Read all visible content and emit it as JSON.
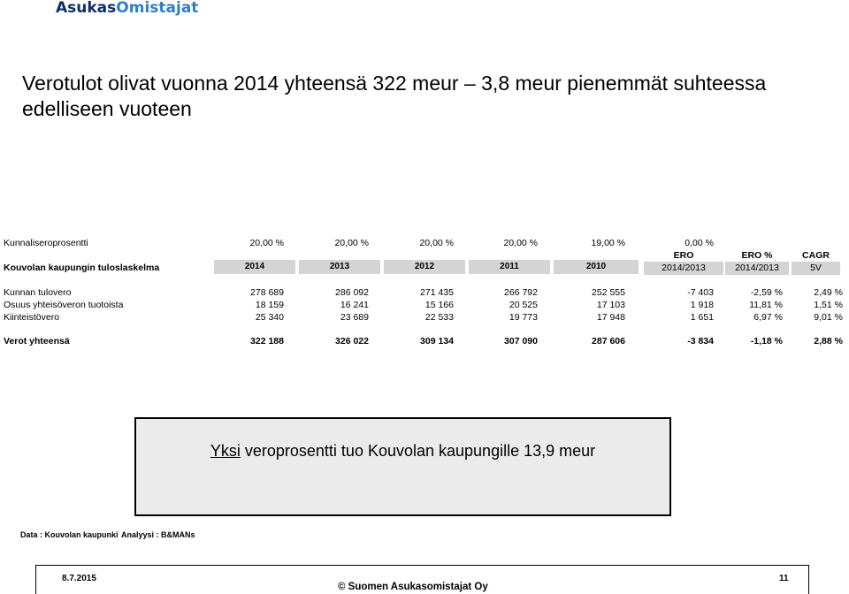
{
  "logo": {
    "part1": "Asukas",
    "part2": "Omistajat"
  },
  "title": "Verotulot olivat vuonna 2014 yhteensä  322 meur – 3,8 meur pienemmät suhteessa edelliseen vuoteen",
  "tax_rate_row": {
    "label": "Kunnaliseroprosentti",
    "values": [
      "20,00 %",
      "20,00 %",
      "20,00 %",
      "20,00 %",
      "19,00 %",
      "0,00 %"
    ]
  },
  "header": {
    "label": "Kouvolan kaupungin tuloslaskelma",
    "years": [
      "2014",
      "2013",
      "2012",
      "2011",
      "2010"
    ],
    "ero_top": "ERO",
    "ero_bottom": "2014/2013",
    "eropct_top": "ERO %",
    "eropct_bottom": "2014/2013",
    "cagr_top": "CAGR",
    "cagr_bottom": "5V"
  },
  "rows": [
    {
      "label": "Kunnan tulovero",
      "values": [
        "278 689",
        "286 092",
        "271 435",
        "266 792",
        "252 555",
        "-7 403",
        "-2,59 %",
        "2,49 %"
      ]
    },
    {
      "label": "Osuus yhteisöveron tuotoista",
      "values": [
        "18 159",
        "16 241",
        "15 166",
        "20 525",
        "17 103",
        "1 918",
        "11,81 %",
        "1,51 %"
      ]
    },
    {
      "label": "Kiinteistövero",
      "values": [
        "25 340",
        "23 689",
        "22 533",
        "19 773",
        "17 948",
        "1 651",
        "6,97 %",
        "9,01 %"
      ]
    }
  ],
  "total": {
    "label": "Verot yhteensä",
    "values": [
      "322 188",
      "326 022",
      "309 134",
      "307 090",
      "287 606",
      "-3 834",
      "-1,18 %",
      "2,88 %"
    ]
  },
  "callout": {
    "underlined": "Yksi",
    "rest": " veroprosentti tuo Kouvolan kaupungille 13,9  meur"
  },
  "source": {
    "data": "Data : Kouvolan kaupunki",
    "analysis": "Analyysi : B&MANs"
  },
  "footer": {
    "date": "8.7.2015",
    "copyright": "© Suomen Asukasomistajat Oy",
    "page": "11"
  }
}
